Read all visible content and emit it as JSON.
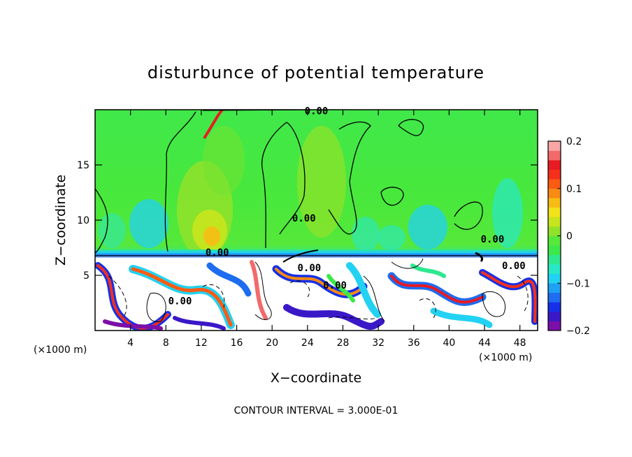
{
  "chart_data": {
    "type": "heatmap",
    "title": "disturbunce of potential temperature",
    "xlabel": "X−coordinate",
    "ylabel": "Z−coordinate",
    "x_unit": "(×1000 m)",
    "x_unit_right": "(×1000 m)",
    "xlim": [
      0,
      50
    ],
    "ylim": [
      0,
      20
    ],
    "x_ticks": [
      4,
      8,
      12,
      16,
      20,
      24,
      28,
      32,
      36,
      40,
      44,
      48
    ],
    "y_ticks": [
      5,
      10,
      15
    ],
    "colorbar": {
      "range": [
        -0.2,
        0.2
      ],
      "tick_values": [
        0.2,
        0.1,
        0,
        -0.1,
        -0.2
      ],
      "tick_labels": [
        "0.2",
        "0.1",
        "0",
        "−0.1",
        "−0.2"
      ],
      "colors": [
        "#7b0fa8",
        "#3a18c8",
        "#1530e8",
        "#1e6cf0",
        "#1ea0f5",
        "#22d2f2",
        "#28e8c8",
        "#2ee890",
        "#3ce84a",
        "#56e83a",
        "#92e22a",
        "#c8e41e",
        "#f2e21a",
        "#f7bc14",
        "#f98a12",
        "#fb5b12",
        "#f4301b",
        "#e81a22",
        "#f26a6a",
        "#f8a6a6"
      ]
    },
    "contour_labels": [
      {
        "x": 25.0,
        "z": 19.9,
        "text": "0.00"
      },
      {
        "x": 23.6,
        "z": 10.2,
        "text": "0.00"
      },
      {
        "x": 13.8,
        "z": 7.1,
        "text": "0.00"
      },
      {
        "x": 9.6,
        "z": 2.7,
        "text": "0.00"
      },
      {
        "x": 24.2,
        "z": 5.7,
        "text": "0.00"
      },
      {
        "x": 27.1,
        "z": 4.1,
        "text": "0.00"
      },
      {
        "x": 44.9,
        "z": 8.3,
        "text": "0.00"
      },
      {
        "x": 47.3,
        "z": 5.9,
        "text": "0.00"
      }
    ],
    "contour_interval_note": "CONTOUR INTERVAL = 3.000E-01",
    "description_regions": {
      "upper_layer_value": 0.0,
      "boundary_layer_top_z": 7.0
    }
  }
}
